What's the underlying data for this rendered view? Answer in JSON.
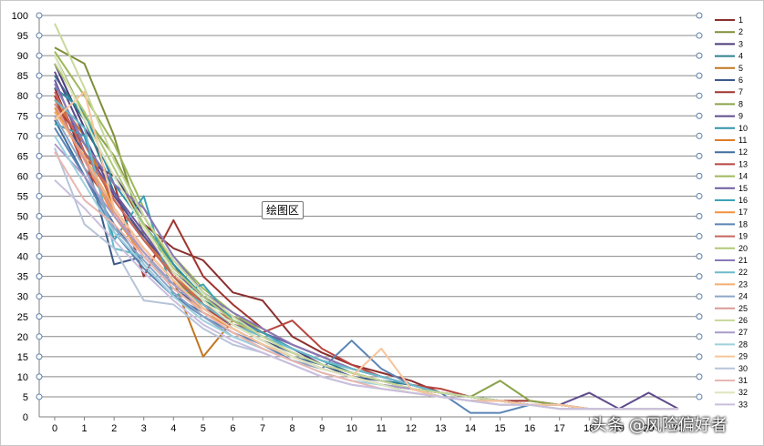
{
  "tooltip": "绘图区",
  "watermark": "头条 @风险偏好者",
  "chart_data": {
    "type": "line",
    "x": [
      0,
      1,
      2,
      3,
      4,
      5,
      6,
      7,
      8,
      9,
      10,
      11,
      12,
      13,
      14,
      15,
      16,
      17,
      18,
      19,
      20,
      21
    ],
    "xticks": [
      "0",
      "1",
      "2",
      "3",
      "4",
      "5",
      "6",
      "7",
      "8",
      "9",
      "10",
      "11",
      "12",
      "13",
      "14",
      "15",
      "16",
      "17",
      "18",
      "19",
      "20",
      "21"
    ],
    "ylim": [
      0,
      100
    ],
    "yticks": [
      0,
      5,
      10,
      15,
      20,
      25,
      30,
      35,
      40,
      45,
      50,
      55,
      60,
      65,
      70,
      75,
      80,
      85,
      90,
      95,
      100
    ],
    "grid": true,
    "legend_position": "right",
    "series": [
      {
        "name": "1",
        "color": "#8B2F2F",
        "values": [
          82,
          64,
          60,
          48,
          42,
          39,
          31,
          29,
          20,
          16,
          13,
          11,
          9,
          6,
          5,
          4,
          3,
          3,
          2,
          2,
          2,
          2
        ]
      },
      {
        "name": "2",
        "color": "#7E8F3A",
        "values": [
          92,
          88,
          70,
          45,
          35,
          27,
          22,
          18,
          15,
          12,
          10,
          8,
          7,
          6,
          5,
          4,
          3,
          3,
          2,
          2,
          2,
          2
        ]
      },
      {
        "name": "3",
        "color": "#4B3C7A",
        "values": [
          88,
          72,
          60,
          50,
          38,
          28,
          24,
          20,
          17,
          13,
          11,
          9,
          8,
          6,
          5,
          4,
          3,
          3,
          2,
          2,
          2,
          2
        ]
      },
      {
        "name": "4",
        "color": "#2E7F8F",
        "values": [
          85,
          74,
          56,
          44,
          36,
          29,
          25,
          21,
          17,
          14,
          11,
          9,
          8,
          6,
          5,
          4,
          3,
          3,
          2,
          2,
          2,
          2
        ]
      },
      {
        "name": "5",
        "color": "#C2761F",
        "values": [
          80,
          70,
          52,
          42,
          34,
          15,
          24,
          20,
          16,
          13,
          11,
          9,
          7,
          6,
          5,
          4,
          3,
          3,
          2,
          2,
          2,
          2
        ]
      },
      {
        "name": "6",
        "color": "#3D5A8A",
        "values": [
          76,
          66,
          38,
          40,
          32,
          27,
          23,
          19,
          16,
          13,
          10,
          9,
          7,
          6,
          5,
          4,
          3,
          2,
          2,
          2,
          2,
          2
        ]
      },
      {
        "name": "7",
        "color": "#A0352F",
        "values": [
          78,
          68,
          58,
          35,
          49,
          35,
          28,
          22,
          18,
          15,
          12,
          10,
          8,
          6,
          5,
          4,
          4,
          3,
          2,
          2,
          2,
          2
        ]
      },
      {
        "name": "8",
        "color": "#8AA34A",
        "values": [
          90,
          75,
          65,
          50,
          38,
          30,
          25,
          22,
          18,
          15,
          12,
          10,
          8,
          6,
          5,
          9,
          4,
          3,
          2,
          2,
          2,
          2
        ]
      },
      {
        "name": "9",
        "color": "#5E4B8B",
        "values": [
          86,
          70,
          55,
          45,
          36,
          28,
          22,
          18,
          15,
          12,
          10,
          8,
          7,
          5,
          4,
          4,
          3,
          3,
          6,
          2,
          6,
          2
        ]
      },
      {
        "name": "10",
        "color": "#2F93A8",
        "values": [
          82,
          76,
          58,
          48,
          38,
          30,
          24,
          20,
          17,
          14,
          12,
          10,
          8,
          6,
          5,
          4,
          3,
          3,
          2,
          2,
          2,
          2
        ]
      },
      {
        "name": "11",
        "color": "#E07B2A",
        "values": [
          79,
          68,
          54,
          44,
          36,
          28,
          23,
          19,
          15,
          12,
          10,
          8,
          7,
          6,
          5,
          4,
          3,
          3,
          2,
          2,
          2,
          2
        ]
      },
      {
        "name": "12",
        "color": "#3F6F9E",
        "values": [
          74,
          60,
          48,
          38,
          30,
          26,
          22,
          18,
          15,
          13,
          11,
          9,
          7,
          6,
          5,
          4,
          3,
          3,
          2,
          2,
          2,
          2
        ]
      },
      {
        "name": "13",
        "color": "#B8463F",
        "values": [
          80,
          62,
          52,
          42,
          34,
          27,
          23,
          21,
          24,
          17,
          13,
          10,
          8,
          7,
          5,
          4,
          3,
          3,
          2,
          2,
          2,
          2
        ]
      },
      {
        "name": "14",
        "color": "#9DB85A",
        "values": [
          91,
          80,
          68,
          52,
          40,
          32,
          26,
          21,
          17,
          14,
          12,
          10,
          8,
          6,
          5,
          4,
          3,
          3,
          2,
          2,
          2,
          2
        ]
      },
      {
        "name": "15",
        "color": "#6E5AA0",
        "values": [
          84,
          66,
          56,
          46,
          36,
          30,
          25,
          21,
          18,
          15,
          12,
          10,
          8,
          6,
          5,
          4,
          3,
          3,
          2,
          2,
          2,
          2
        ]
      },
      {
        "name": "16",
        "color": "#3DA3B8",
        "values": [
          73,
          70,
          44,
          55,
          30,
          33,
          24,
          21,
          17,
          14,
          12,
          10,
          8,
          6,
          5,
          4,
          3,
          3,
          2,
          2,
          2,
          2
        ]
      },
      {
        "name": "17",
        "color": "#F0923E",
        "values": [
          77,
          64,
          50,
          40,
          32,
          26,
          22,
          18,
          15,
          12,
          10,
          8,
          7,
          5,
          4,
          4,
          3,
          3,
          2,
          2,
          2,
          2
        ]
      },
      {
        "name": "18",
        "color": "#5A84B5",
        "values": [
          72,
          60,
          46,
          37,
          30,
          25,
          21,
          18,
          14,
          12,
          19,
          12,
          8,
          6,
          1,
          1,
          3,
          3,
          2,
          2,
          2,
          2
        ]
      },
      {
        "name": "19",
        "color": "#C7655C",
        "values": [
          81,
          66,
          54,
          44,
          35,
          28,
          24,
          20,
          16,
          13,
          11,
          9,
          7,
          6,
          5,
          4,
          3,
          3,
          2,
          2,
          2,
          2
        ]
      },
      {
        "name": "20",
        "color": "#B0C878",
        "values": [
          88,
          76,
          62,
          48,
          37,
          30,
          24,
          20,
          16,
          13,
          11,
          9,
          7,
          6,
          5,
          4,
          3,
          3,
          2,
          2,
          2,
          2
        ]
      },
      {
        "name": "21",
        "color": "#8A78B8",
        "values": [
          83,
          68,
          58,
          52,
          40,
          31,
          26,
          22,
          18,
          15,
          12,
          10,
          8,
          6,
          5,
          4,
          3,
          3,
          2,
          2,
          2,
          2
        ]
      },
      {
        "name": "22",
        "color": "#6CBACB",
        "values": [
          79,
          72,
          42,
          40,
          33,
          28,
          23,
          20,
          17,
          14,
          12,
          10,
          8,
          6,
          5,
          4,
          3,
          3,
          2,
          2,
          2,
          2
        ]
      },
      {
        "name": "23",
        "color": "#F4AE72",
        "values": [
          76,
          65,
          52,
          42,
          34,
          26,
          21,
          17,
          14,
          12,
          10,
          8,
          7,
          5,
          4,
          4,
          3,
          3,
          2,
          2,
          2,
          2
        ]
      },
      {
        "name": "24",
        "color": "#8DA6C8",
        "values": [
          75,
          62,
          47,
          39,
          31,
          25,
          20,
          17,
          14,
          12,
          10,
          8,
          7,
          5,
          4,
          4,
          3,
          3,
          2,
          2,
          2,
          2
        ]
      },
      {
        "name": "25",
        "color": "#D99A94",
        "values": [
          78,
          64,
          51,
          41,
          33,
          27,
          22,
          18,
          15,
          12,
          10,
          8,
          7,
          5,
          4,
          4,
          3,
          3,
          2,
          2,
          2,
          2
        ]
      },
      {
        "name": "26",
        "color": "#C9D99C",
        "values": [
          98,
          82,
          64,
          50,
          39,
          31,
          25,
          20,
          16,
          13,
          11,
          9,
          7,
          6,
          5,
          4,
          3,
          3,
          2,
          2,
          2,
          2
        ]
      },
      {
        "name": "27",
        "color": "#A99BC9",
        "values": [
          68,
          60,
          50,
          41,
          33,
          27,
          22,
          18,
          15,
          12,
          10,
          8,
          7,
          5,
          4,
          4,
          3,
          3,
          2,
          2,
          2,
          2
        ]
      },
      {
        "name": "28",
        "color": "#9FD0DD",
        "values": [
          70,
          58,
          46,
          38,
          30,
          24,
          20,
          17,
          14,
          11,
          9,
          8,
          6,
          5,
          4,
          3,
          3,
          2,
          2,
          2,
          2,
          2
        ]
      },
      {
        "name": "29",
        "color": "#F7C59C",
        "values": [
          74,
          81,
          52,
          42,
          34,
          27,
          22,
          18,
          15,
          12,
          10,
          17,
          7,
          5,
          4,
          4,
          3,
          3,
          2,
          2,
          2,
          2
        ]
      },
      {
        "name": "30",
        "color": "#B7C4D9",
        "values": [
          67,
          48,
          42,
          29,
          28,
          22,
          18,
          16,
          13,
          10,
          8,
          7,
          6,
          5,
          4,
          3,
          3,
          2,
          2,
          2,
          2,
          2
        ]
      },
      {
        "name": "31",
        "color": "#E8B6B2",
        "values": [
          66,
          54,
          48,
          40,
          32,
          26,
          21,
          17,
          14,
          11,
          9,
          7,
          6,
          5,
          4,
          3,
          3,
          2,
          2,
          2,
          2,
          2
        ]
      },
      {
        "name": "32",
        "color": "#DDE6BE",
        "values": [
          90,
          74,
          60,
          47,
          36,
          29,
          23,
          19,
          15,
          12,
          10,
          8,
          6,
          5,
          4,
          3,
          3,
          2,
          2,
          2,
          2,
          2
        ]
      },
      {
        "name": "33",
        "color": "#C9BFDD",
        "values": [
          59,
          52,
          44,
          36,
          29,
          23,
          19,
          16,
          13,
          10,
          8,
          7,
          6,
          5,
          4,
          3,
          3,
          2,
          2,
          2,
          2,
          2
        ]
      }
    ]
  }
}
